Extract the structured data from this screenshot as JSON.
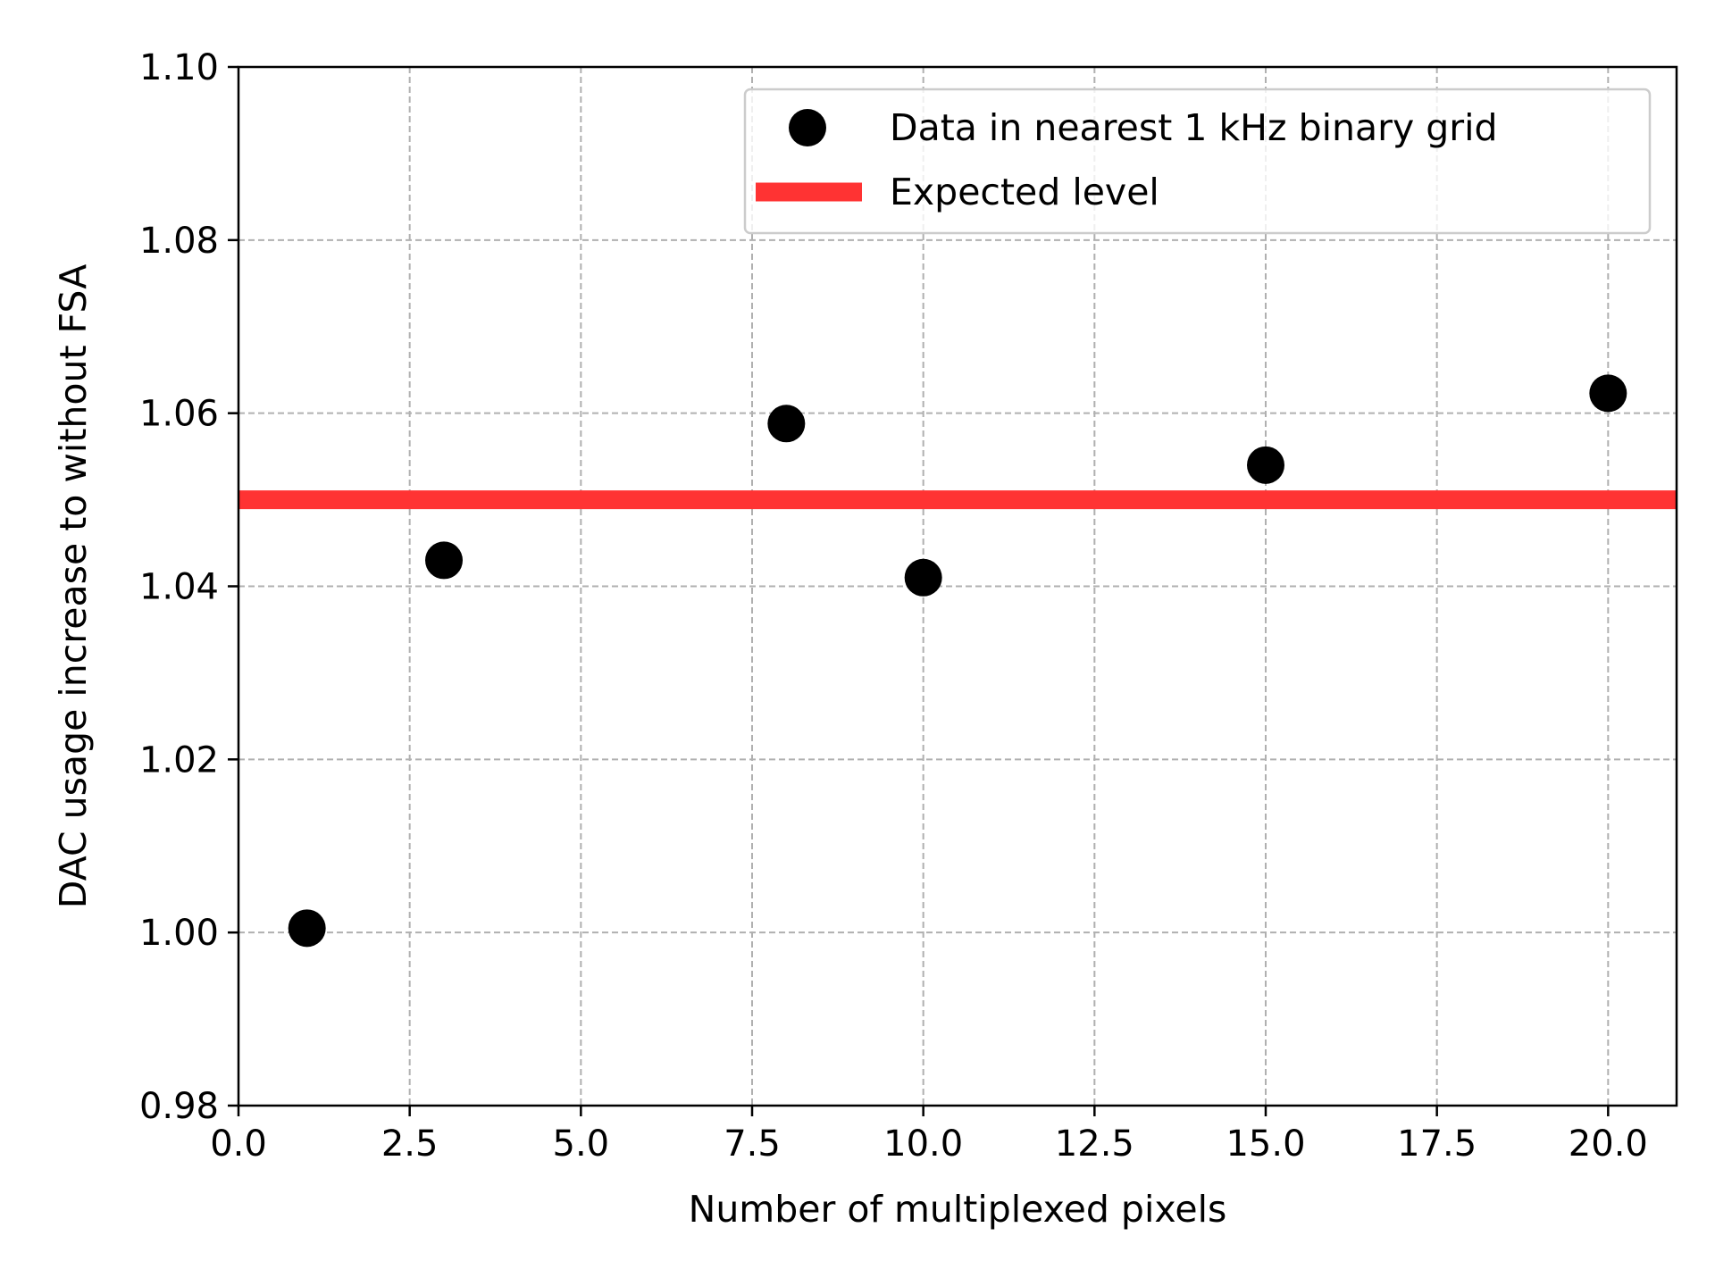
{
  "chart_data": {
    "type": "scatter",
    "title": "",
    "xlabel": "Number of multiplexed pixels",
    "ylabel": "DAC usage increase to without FSA",
    "xlim": [
      0,
      21
    ],
    "ylim": [
      0.98,
      1.1
    ],
    "xticks": [
      0.0,
      2.5,
      5.0,
      7.5,
      10.0,
      12.5,
      15.0,
      17.5,
      20.0
    ],
    "xtick_labels": [
      "0.0",
      "2.5",
      "5.0",
      "7.5",
      "10.0",
      "12.5",
      "15.0",
      "17.5",
      "20.0"
    ],
    "yticks": [
      0.98,
      1.0,
      1.02,
      1.04,
      1.06,
      1.08,
      1.1
    ],
    "ytick_labels": [
      "0.98",
      "1.00",
      "1.02",
      "1.04",
      "1.06",
      "1.08",
      "1.10"
    ],
    "grid": true,
    "legend_position": "top-right",
    "series": [
      {
        "name": "Data in nearest 1 kHz binary grid",
        "kind": "markers",
        "color": "#000000",
        "x": [
          1,
          3,
          8,
          10,
          15,
          20
        ],
        "y": [
          1.0005,
          1.043,
          1.0588,
          1.041,
          1.054,
          1.0623
        ]
      },
      {
        "name": "Expected level",
        "kind": "hline",
        "color": "#ff3333",
        "y": 1.05
      }
    ]
  }
}
